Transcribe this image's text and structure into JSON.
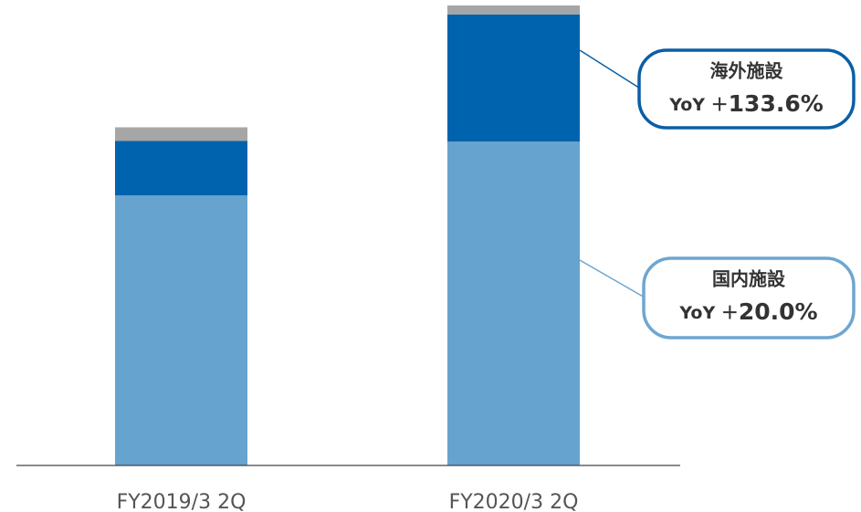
{
  "chart_data": {
    "type": "stacked_bar",
    "categories": [
      "FY2019/3 2Q",
      "FY2020/3 2Q"
    ],
    "series": [
      {
        "color": "#66a3cf",
        "values": [
          296,
          355
        ]
      },
      {
        "color": "#0063ad",
        "values": [
          59.5,
          139
        ]
      },
      {
        "color": "#a6a6a6",
        "values": [
          15,
          10
        ]
      }
    ],
    "ylim": [
      0,
      505
    ],
    "annotations": [
      {
        "title": "海外施設",
        "prefix": "YoY ＋",
        "value": "133.6%",
        "color": "#0a5fa5"
      },
      {
        "title": "国内施設",
        "prefix": "YoY ＋",
        "value": "20.0%",
        "color": "#6ea6d0"
      }
    ]
  }
}
